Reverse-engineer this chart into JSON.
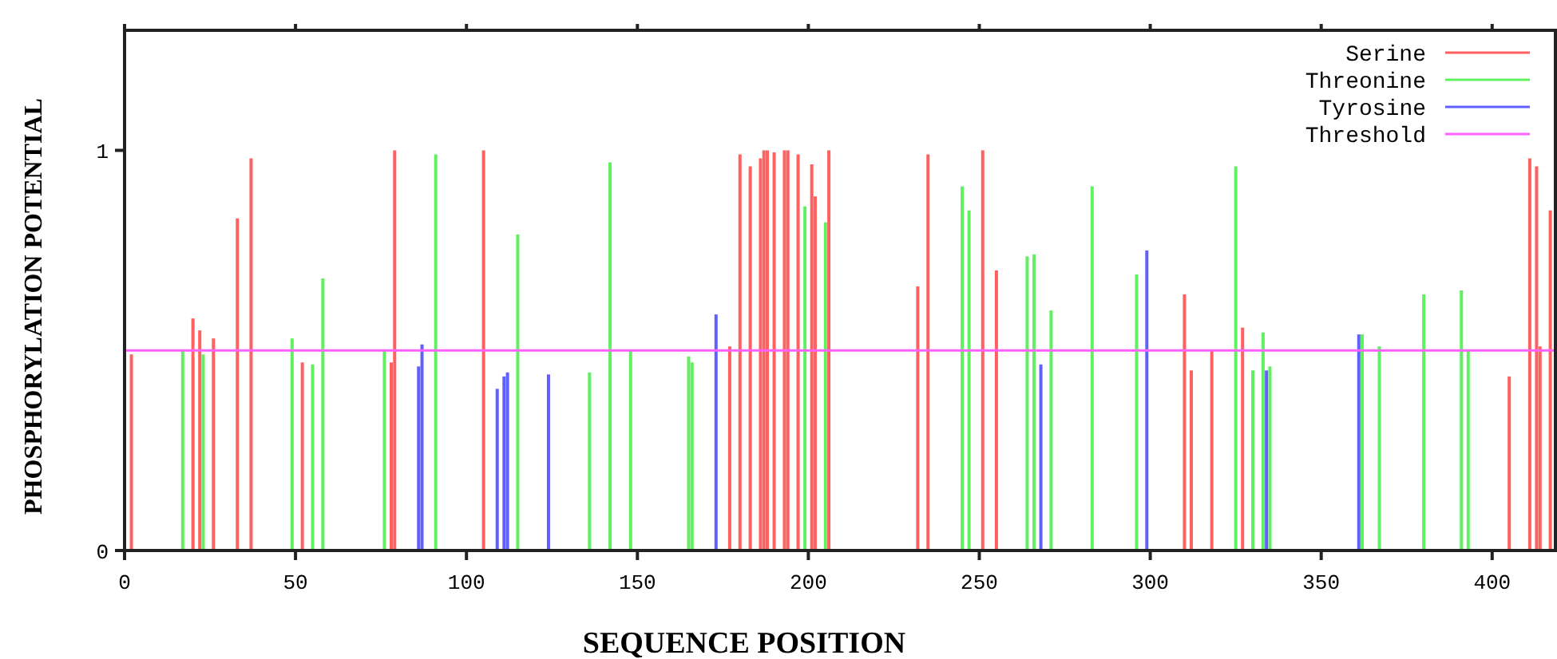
{
  "chart_data": {
    "type": "bar",
    "xlabel": "SEQUENCE POSITION",
    "ylabel": "PHOSPHORYLATION POTENTIAL",
    "xlim": [
      0,
      418.5
    ],
    "ylim": [
      0,
      1.3
    ],
    "xticks": [
      0,
      50,
      100,
      150,
      200,
      250,
      300,
      350,
      400
    ],
    "yticks": [
      0,
      1
    ],
    "legend": "top right",
    "grid": false,
    "series": [
      {
        "name": "Serine",
        "color": "#ff6060",
        "x": [
          2,
          20,
          22,
          26,
          33,
          37,
          52,
          78,
          79,
          105,
          177,
          180,
          183,
          186,
          187,
          188,
          190,
          193,
          194,
          197,
          201,
          202,
          206,
          232,
          235,
          251,
          255,
          310,
          312,
          318,
          327,
          405,
          411,
          413,
          414,
          417
        ],
        "values": [
          0.49,
          0.58,
          0.55,
          0.53,
          0.83,
          0.98,
          0.47,
          0.47,
          1.0,
          1.0,
          0.51,
          0.99,
          0.96,
          0.98,
          1.0,
          1.0,
          0.995,
          1.0,
          1.0,
          0.99,
          0.965,
          0.885,
          1.0,
          0.66,
          0.99,
          1.0,
          0.7,
          0.64,
          0.45,
          0.5,
          0.557,
          0.435,
          0.98,
          0.96,
          0.51,
          0.85
        ]
      },
      {
        "name": "Threonine",
        "color": "#60f060",
        "x": [
          17,
          23,
          49,
          55,
          58,
          76,
          91,
          115,
          136,
          142,
          148,
          165,
          166,
          199,
          205,
          245,
          247,
          264,
          266,
          271,
          283,
          296,
          325,
          330,
          333,
          335,
          362,
          367,
          380,
          391,
          393
        ],
        "values": [
          0.5,
          0.49,
          0.53,
          0.465,
          0.68,
          0.5,
          0.99,
          0.79,
          0.445,
          0.97,
          0.5,
          0.485,
          0.47,
          0.86,
          0.82,
          0.91,
          0.85,
          0.735,
          0.74,
          0.6,
          0.91,
          0.69,
          0.96,
          0.45,
          0.545,
          0.46,
          0.54,
          0.51,
          0.64,
          0.65,
          0.5
        ]
      },
      {
        "name": "Tyrosine",
        "color": "#6060ff",
        "x": [
          86,
          87,
          109,
          111,
          112,
          124,
          173,
          268,
          299,
          334,
          361
        ],
        "values": [
          0.46,
          0.515,
          0.404,
          0.435,
          0.445,
          0.44,
          0.59,
          0.465,
          0.75,
          0.45,
          0.54
        ]
      }
    ],
    "ref_lines": [
      {
        "axis": "y",
        "value": 0.5,
        "label": "Threshold",
        "color": "#ff60ff"
      }
    ]
  }
}
